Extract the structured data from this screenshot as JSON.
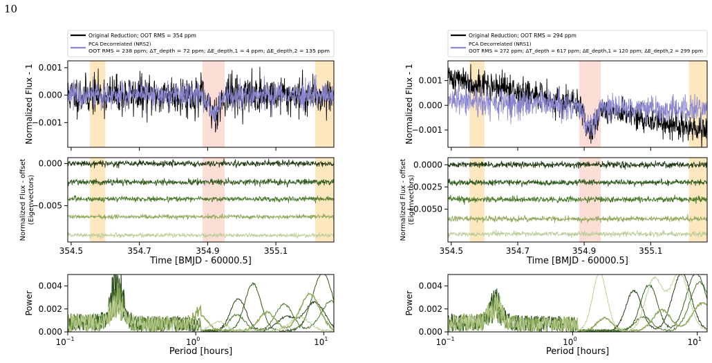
{
  "page": {
    "number": "10"
  },
  "colors": {
    "original": "#000000",
    "pca": "#8a86d0",
    "eig1": "#1f3b12",
    "eig2": "#2f5a1c",
    "eig3": "#4a7a28",
    "eig4": "#8faa58",
    "eig5": "#bccf98",
    "ingress_egress": "#fbe3b4",
    "transit": "#fdd8cf"
  },
  "chart_data": [
    {
      "type": "line",
      "id": "nrs2-lightcurve",
      "series": [
        {
          "name": "Original Reduction; OOT RMS = 354 ppm",
          "rms": 0.000354,
          "baseline_trend": [
            0,
            0
          ]
        },
        {
          "name": "PCA Decorrelated (NRS2)",
          "name_line2": "OOT RMS = 238 ppm; ΔT_depth = 72 ppm; ΔE_depth,1 = 4 ppm; ΔE_depth,2 = 135 ppm",
          "rms": 0.000238,
          "baseline_trend": [
            0,
            0
          ]
        }
      ],
      "xlim": [
        354.49,
        355.27
      ],
      "ylim": [
        -0.0019,
        0.00125
      ],
      "ytick_values": [
        0.001,
        0.0,
        -0.001
      ],
      "ytick_labels": [
        "0.001",
        "0.000",
        "−0.001"
      ],
      "ylabel": "Normalized Flux - 1",
      "transit": [
        354.885,
        354.95
      ],
      "transit_depth": 0.0006,
      "ingress_egress_bands": [
        [
          354.555,
          354.6
        ],
        [
          355.215,
          355.27
        ]
      ]
    },
    {
      "type": "line",
      "id": "nrs2-eigenvectors",
      "offsets": [
        0.0,
        -0.0022,
        -0.0042,
        -0.0063,
        -0.0085
      ],
      "noise": [
        0.00018,
        0.00018,
        0.00015,
        0.00013,
        0.00012
      ],
      "xlim": [
        354.49,
        355.27
      ],
      "ylim": [
        -0.0093,
        0.0007
      ],
      "ytick_values": [
        0.0,
        -0.005
      ],
      "ytick_labels": [
        "0.000",
        "−0.005"
      ],
      "xtick_values": [
        354.5,
        354.7,
        354.9,
        355.1
      ],
      "xtick_labels": [
        "354.5",
        "354.7",
        "354.9",
        "355.1"
      ],
      "ylabel": "Normalized Flux - offset",
      "ylabel2": "(Eigenvectors)",
      "xlabel": "Time [BMJD - 60000.5]"
    },
    {
      "type": "line",
      "id": "nrs2-periodogram",
      "xscale": "log",
      "xlim": [
        0.1,
        12
      ],
      "ylim": [
        0,
        0.005
      ],
      "ytick_values": [
        0.0,
        0.002,
        0.004
      ],
      "ytick_labels": [
        "0.000",
        "0.002",
        "0.004"
      ],
      "xtick_values": [
        0.1,
        1,
        10
      ],
      "xtick_base": "10",
      "xtick_exponents": [
        "−1",
        "0",
        "1"
      ],
      "ylabel": "Power",
      "xlabel": "Period [hours]",
      "peaks": [
        [
          [
            0.24,
            0.005
          ],
          [
            2.15,
            0.0028
          ],
          [
            5.1,
            0.0012
          ],
          [
            8.5,
            0.0025
          ]
        ],
        [
          [
            0.24,
            0.004
          ],
          [
            2.8,
            0.0041
          ],
          [
            9.8,
            0.005
          ]
        ],
        [
          [
            0.24,
            0.0035
          ],
          [
            2.1,
            0.0014
          ],
          [
            4.9,
            0.0023
          ],
          [
            11.5,
            0.0026
          ]
        ],
        [
          [
            0.24,
            0.003
          ],
          [
            1.1,
            0.0013
          ],
          [
            3.6,
            0.0016
          ],
          [
            7.8,
            0.0032
          ]
        ],
        [
          [
            0.24,
            0.0022
          ],
          [
            1.5,
            0.0008
          ],
          [
            6.5,
            0.0012
          ]
        ]
      ]
    },
    {
      "type": "line",
      "id": "nrs1-lightcurve",
      "series": [
        {
          "name": "Original Reduction; OOT RMS = 294 ppm",
          "rms": 0.000294,
          "baseline_trend": [
            0.00115,
            -0.0011
          ]
        },
        {
          "name": "PCA Decorrelated (NRS1)",
          "name_line2": "OOT RMS = 272 ppm; ΔT_depth = 617 ppm; ΔE_depth,1 = 120 ppm; ΔE_depth,2 = 299 ppm",
          "rms": 0.000272,
          "baseline_trend": [
            0.0002,
            -0.0002
          ]
        }
      ],
      "xlim": [
        354.49,
        355.27
      ],
      "ylim": [
        -0.0017,
        0.0018
      ],
      "ytick_values": [
        0.001,
        0.0,
        -0.001
      ],
      "ytick_labels": [
        "0.001",
        "0.000",
        "−0.001"
      ],
      "ylabel": "Normalized Flux - 1",
      "transit": [
        354.885,
        354.95
      ],
      "transit_depth": 0.0008,
      "ingress_egress_bands": [
        [
          354.555,
          354.6
        ],
        [
          355.215,
          355.27
        ]
      ]
    },
    {
      "type": "line",
      "id": "nrs1-eigenvectors",
      "offsets": [
        0.0,
        -0.002,
        -0.0039,
        -0.0061,
        -0.0078
      ],
      "noise": [
        0.00018,
        0.00016,
        0.00017,
        0.00015,
        0.00014
      ],
      "xlim": [
        354.49,
        355.27
      ],
      "ylim": [
        -0.0087,
        0.0008
      ],
      "ytick_values": [
        0.0,
        -0.0025,
        -0.005
      ],
      "ytick_labels": [
        "0.0000",
        "−0.0025",
        "−0.0050"
      ],
      "xtick_values": [
        354.5,
        354.7,
        354.9,
        355.1
      ],
      "xtick_labels": [
        "354.5",
        "354.7",
        "354.9",
        "355.1"
      ],
      "ylabel": "Normalized Flux - offset",
      "ylabel2": "(Eigenvectors)",
      "xlabel": "Time [BMJD - 60000.5]"
    },
    {
      "type": "line",
      "id": "nrs1-periodogram",
      "xscale": "log",
      "xlim": [
        0.1,
        12
      ],
      "ylim": [
        0,
        0.005
      ],
      "ytick_values": [
        0.0,
        0.002,
        0.004
      ],
      "ytick_labels": [
        "0.000",
        "0.002",
        "0.004"
      ],
      "xtick_values": [
        0.1,
        1,
        10
      ],
      "xtick_base": "10",
      "xtick_exponents": [
        "−1",
        "0",
        "1"
      ],
      "ylabel": "Power",
      "xlabel": "Period [hours]",
      "peaks": [
        [
          [
            0.24,
            0.0024
          ],
          [
            3.1,
            0.0035
          ],
          [
            7.5,
            0.005
          ]
        ],
        [
          [
            0.24,
            0.0021
          ],
          [
            4.1,
            0.004
          ],
          [
            9.8,
            0.005
          ]
        ],
        [
          [
            0.24,
            0.0018
          ],
          [
            3.7,
            0.0012
          ],
          [
            10.5,
            0.0042
          ]
        ],
        [
          [
            0.24,
            0.002
          ],
          [
            1.8,
            0.0011
          ],
          [
            5.2,
            0.0018
          ],
          [
            11.0,
            0.0024
          ]
        ],
        [
          [
            0.24,
            0.0026
          ],
          [
            1.65,
            0.005
          ],
          [
            4.5,
            0.0045
          ],
          [
            7.2,
            0.005
          ]
        ]
      ]
    }
  ]
}
